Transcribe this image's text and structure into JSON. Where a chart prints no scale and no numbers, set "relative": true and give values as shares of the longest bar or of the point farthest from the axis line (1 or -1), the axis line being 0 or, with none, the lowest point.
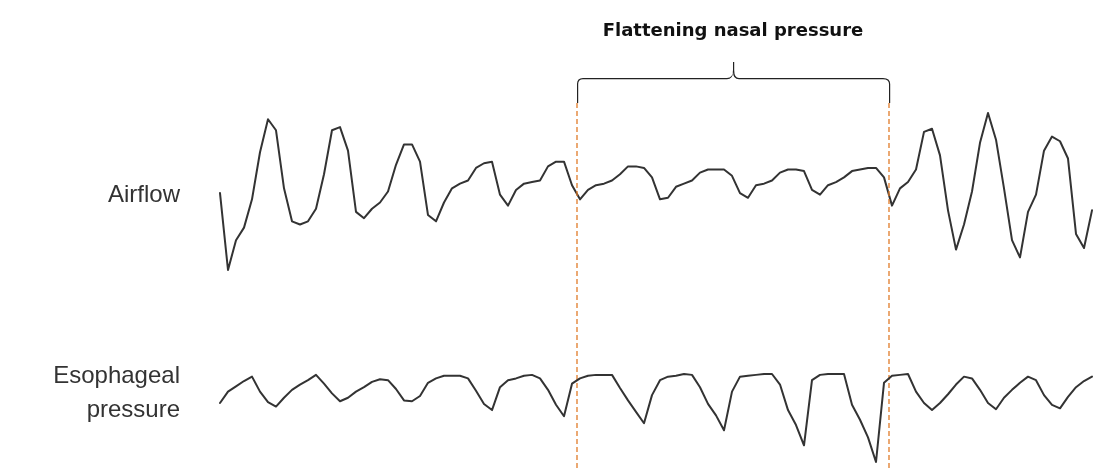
{
  "chart_data": [
    {
      "type": "line",
      "ylabel": "Airflow",
      "relative": true,
      "color": "#333333",
      "line_style": "solid",
      "marker": "none",
      "annotations": [
        "Flattening nasal pressure"
      ],
      "categories": [
        null,
        null,
        null,
        null,
        null,
        null,
        null,
        null,
        null,
        null,
        null,
        null,
        null,
        null,
        null,
        null,
        null,
        null,
        null,
        null,
        null,
        null,
        null,
        null,
        null,
        null,
        null,
        null,
        null,
        null,
        null,
        null,
        null,
        null,
        null,
        null,
        null,
        null,
        null,
        null,
        null,
        null,
        null,
        null,
        null,
        null,
        null,
        null,
        null,
        null,
        null,
        null,
        null,
        null,
        null,
        null,
        null,
        null,
        null,
        null,
        null,
        null,
        null,
        null,
        null,
        null,
        null,
        null,
        null,
        null,
        null,
        null,
        null,
        null,
        null,
        null,
        null,
        null,
        null,
        null,
        null,
        null,
        null,
        null,
        null,
        null,
        null,
        null,
        null,
        null,
        null,
        null,
        null,
        null,
        null,
        null,
        null,
        null,
        null,
        null,
        null,
        null,
        null,
        null,
        null,
        null,
        null,
        null,
        null,
        null
      ],
      "values": [
        0.49,
        0,
        0.19,
        0.27,
        0.45,
        0.75,
        0.96,
        0.89,
        0.52,
        0.31,
        0.29,
        0.31,
        0.39,
        0.61,
        0.89,
        0.91,
        0.76,
        0.37,
        0.33,
        0.39,
        0.43,
        0.5,
        0.67,
        0.8,
        0.8,
        0.69,
        0.35,
        0.31,
        0.43,
        0.52,
        0.55,
        0.57,
        0.65,
        0.68,
        0.69,
        0.48,
        0.41,
        0.51,
        0.55,
        0.56,
        0.57,
        0.66,
        0.69,
        0.69,
        0.54,
        0.45,
        0.51,
        0.54,
        0.55,
        0.57,
        0.61,
        0.66,
        0.66,
        0.65,
        0.59,
        0.45,
        0.46,
        0.53,
        0.55,
        0.57,
        0.62,
        0.64,
        0.64,
        0.64,
        0.6,
        0.49,
        0.46,
        0.54,
        0.55,
        0.57,
        0.62,
        0.64,
        0.64,
        0.63,
        0.51,
        0.48,
        0.54,
        0.56,
        0.59,
        0.63,
        0.64,
        0.65,
        0.65,
        0.59,
        0.41,
        0.52,
        0.56,
        0.64,
        0.88,
        0.9,
        0.73,
        0.38,
        0.13,
        0.29,
        0.5,
        0.81,
        1,
        0.83,
        0.52,
        0.19,
        0.08,
        0.37,
        0.48,
        0.76,
        0.85,
        0.82,
        0.71,
        0.23,
        0.14,
        0.38
      ]
    },
    {
      "type": "line",
      "ylabel": "Esophageal pressure",
      "relative": true,
      "color": "#333333",
      "line_style": "solid",
      "marker": "none",
      "categories": [
        null,
        null,
        null,
        null,
        null,
        null,
        null,
        null,
        null,
        null,
        null,
        null,
        null,
        null,
        null,
        null,
        null,
        null,
        null,
        null,
        null,
        null,
        null,
        null,
        null,
        null,
        null,
        null,
        null,
        null,
        null,
        null,
        null,
        null,
        null,
        null,
        null,
        null,
        null,
        null,
        null,
        null,
        null,
        null,
        null,
        null,
        null,
        null,
        null,
        null,
        null,
        null,
        null,
        null,
        null,
        null,
        null,
        null,
        null,
        null,
        null,
        null,
        null,
        null,
        null,
        null,
        null,
        null,
        null,
        null,
        null,
        null,
        null,
        null,
        null,
        null,
        null,
        null,
        null,
        null,
        null,
        null,
        null,
        null,
        null,
        null,
        null,
        null,
        null,
        null,
        null,
        null,
        null,
        null,
        null,
        null,
        null,
        null,
        null,
        null,
        null,
        null,
        null,
        null,
        null,
        null,
        null,
        null,
        null,
        null
      ],
      "values": [
        0.67,
        0.8,
        0.86,
        0.92,
        0.97,
        0.8,
        0.68,
        0.63,
        0.73,
        0.82,
        0.88,
        0.93,
        0.99,
        0.89,
        0.78,
        0.69,
        0.73,
        0.8,
        0.85,
        0.91,
        0.94,
        0.93,
        0.83,
        0.7,
        0.69,
        0.75,
        0.9,
        0.95,
        0.98,
        0.98,
        0.98,
        0.95,
        0.81,
        0.66,
        0.59,
        0.85,
        0.93,
        0.95,
        0.98,
        0.99,
        0.95,
        0.82,
        0.65,
        0.52,
        0.89,
        0.95,
        0.98,
        0.99,
        0.99,
        0.99,
        0.84,
        0.7,
        0.57,
        0.44,
        0.76,
        0.93,
        0.97,
        0.98,
        1,
        0.99,
        0.85,
        0.66,
        0.53,
        0.36,
        0.8,
        0.97,
        0.98,
        0.99,
        1,
        1,
        0.88,
        0.59,
        0.42,
        0.19,
        0.93,
        0.99,
        1,
        1,
        1,
        0.65,
        0.48,
        0.28,
        0,
        0.9,
        0.98,
        0.99,
        1,
        0.8,
        0.67,
        0.59,
        0.67,
        0.77,
        0.88,
        0.97,
        0.95,
        0.82,
        0.67,
        0.6,
        0.73,
        0.82,
        0.9,
        0.97,
        0.93,
        0.76,
        0.65,
        0.61,
        0.74,
        0.85,
        0.92,
        0.97
      ]
    }
  ]
}
